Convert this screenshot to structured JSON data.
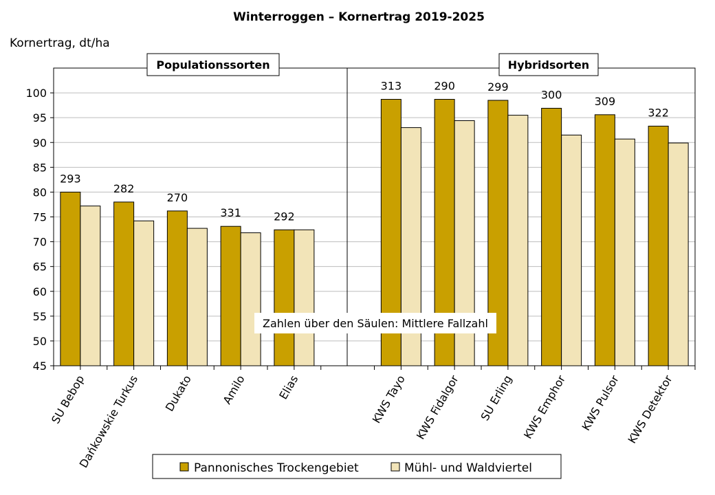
{
  "chart_data": {
    "type": "bar",
    "title": "Winterroggen – Kornertrag 2019-2025",
    "ylabel": "Kornertrag, dt/ha",
    "xlabel": "",
    "ylim": [
      45,
      105
    ],
    "yticks": [
      45,
      50,
      55,
      60,
      65,
      70,
      75,
      80,
      85,
      90,
      95,
      100
    ],
    "grid": true,
    "legend_position": "bottom",
    "annotation": "Zahlen über den Säulen: Mittlere Fallzahl",
    "groups": [
      {
        "label": "Populationssorten",
        "categories": [
          "SU Bebop",
          "Dańkowskie Turkus",
          "Dukato",
          "Amilo",
          "Elias"
        ]
      },
      {
        "label": "Hybridsorten",
        "categories": [
          "KWS Tayo",
          "KWS Fidalgor",
          "SU Erling",
          "KWS Emphor",
          "KWS Pulsor",
          "KWS Detektor"
        ]
      }
    ],
    "categories": [
      "SU Bebop",
      "Dańkowskie Turkus",
      "Dukato",
      "Amilo",
      "Elias",
      "KWS Tayo",
      "KWS Fidalgor",
      "SU Erling",
      "KWS Emphor",
      "KWS Pulsor",
      "KWS Detektor"
    ],
    "series": [
      {
        "name": "Pannonisches Trockengebiet",
        "color": "#C9A000",
        "values": [
          80.0,
          78.0,
          76.2,
          73.1,
          72.4,
          98.7,
          98.7,
          98.5,
          96.9,
          95.6,
          93.3
        ]
      },
      {
        "name": "Mühl- und Waldviertel",
        "color": "#F2E4B8",
        "values": [
          77.2,
          74.2,
          72.7,
          71.8,
          72.4,
          93.0,
          94.4,
          95.5,
          91.5,
          90.7,
          89.9
        ]
      }
    ],
    "data_labels": [
      "293",
      "282",
      "270",
      "331",
      "292",
      "313",
      "290",
      "299",
      "300",
      "309",
      "322"
    ]
  }
}
